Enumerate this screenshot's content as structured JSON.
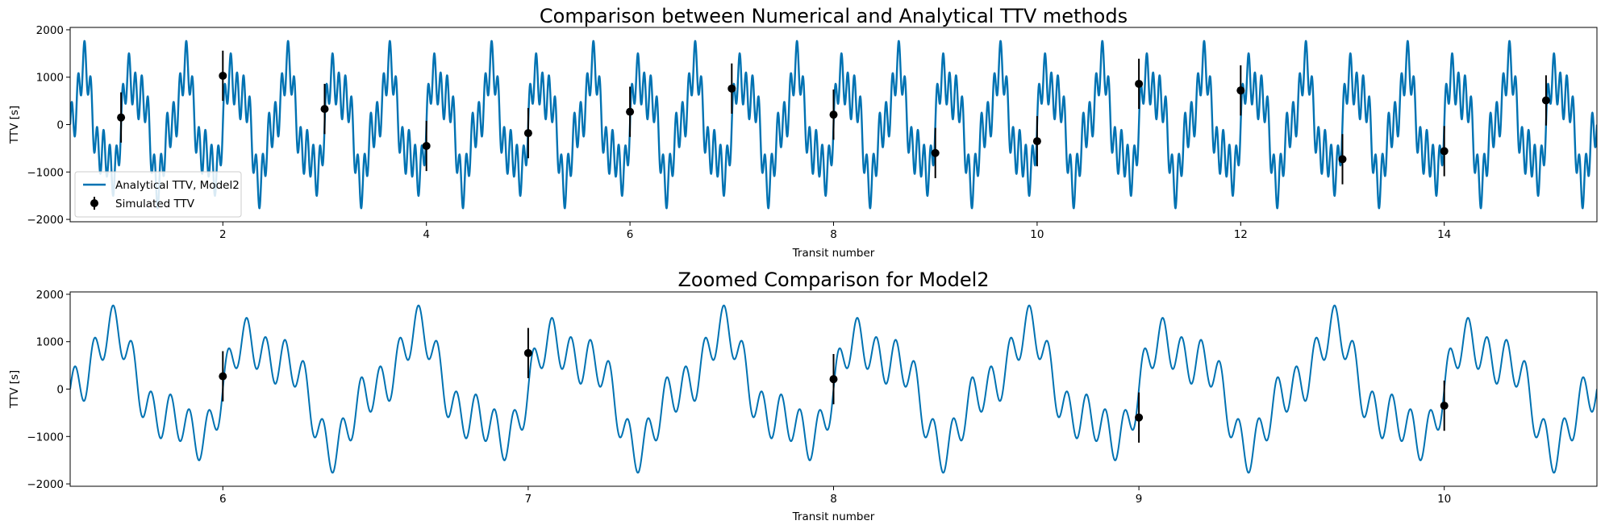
{
  "chart_data": [
    {
      "type": "line",
      "title": "Comparison between Numerical and Analytical TTV methods",
      "xlabel": "Transit number",
      "ylabel": "TTV [s]",
      "xlim": [
        0.5,
        15.5
      ],
      "ylim": [
        -2050,
        2050
      ],
      "xticks": [
        2,
        4,
        6,
        8,
        10,
        12,
        14
      ],
      "yticks": [
        -2000,
        -1000,
        0,
        1000,
        2000
      ],
      "grid": false,
      "legend": "bottom-left",
      "series": [
        {
          "name": "Analytical TTV, Model2",
          "kind": "line",
          "color": "#0072b2",
          "model": {
            "offset": 0,
            "components": [
              {
                "amplitude": 1000,
                "period": 0.5
              },
              {
                "amplitude": 450,
                "period": 0.0625
              },
              {
                "amplitude": 350,
                "period": 0.2
              }
            ]
          }
        },
        {
          "name": "Simulated TTV",
          "kind": "errorbar",
          "color": "#000000",
          "x": [
            1,
            2,
            3,
            4,
            5,
            6,
            7,
            8,
            9,
            10,
            11,
            12,
            13,
            14,
            15
          ],
          "y": [
            150,
            1030,
            330,
            -450,
            -180,
            270,
            760,
            210,
            -600,
            -350,
            860,
            720,
            -730,
            -560,
            510
          ],
          "yerr": [
            530,
            530,
            530,
            530,
            530,
            530,
            530,
            530,
            530,
            530,
            530,
            530,
            530,
            530,
            530
          ]
        }
      ]
    },
    {
      "type": "line",
      "title": "Zoomed Comparison for Model2",
      "xlabel": "Transit number",
      "ylabel": "TTV [s]",
      "xlim": [
        5.5,
        10.5
      ],
      "ylim": [
        -2050,
        2050
      ],
      "xticks": [
        6,
        7,
        8,
        9,
        10
      ],
      "yticks": [
        -2000,
        -1000,
        0,
        1000,
        2000
      ],
      "grid": false,
      "series": [
        {
          "kind": "line",
          "color": "#0072b2",
          "model": {
            "offset": 0,
            "components": [
              {
                "amplitude": 1000,
                "period": 0.5
              },
              {
                "amplitude": 450,
                "period": 0.0625
              },
              {
                "amplitude": 350,
                "period": 0.2
              }
            ]
          }
        },
        {
          "kind": "errorbar",
          "color": "#000000",
          "x": [
            6,
            7,
            8,
            9,
            10
          ],
          "y": [
            270,
            760,
            210,
            -600,
            -350
          ],
          "yerr": [
            530,
            530,
            530,
            530,
            530
          ]
        }
      ]
    }
  ]
}
